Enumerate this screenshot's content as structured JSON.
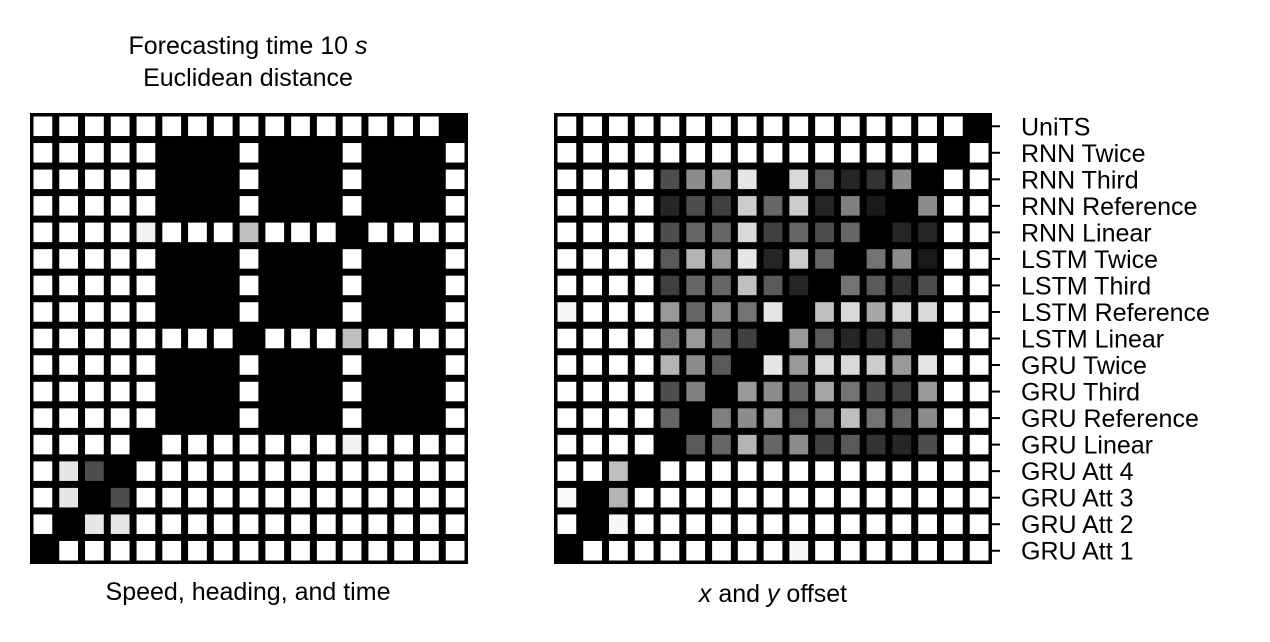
{
  "figure": {
    "title_line1_prefix": "Forecasting time 10 ",
    "title_line1_italic": "s",
    "title_line2": "Euclidean distance"
  },
  "chart_data": [
    {
      "type": "heatmap",
      "colormap": "gray (0 = black, 1 = white)",
      "xlabel": "Speed, heading, and time",
      "size": 17,
      "matrix": [
        [
          1,
          1,
          1,
          1,
          1,
          1,
          1,
          1,
          1,
          1,
          1,
          1,
          1,
          1,
          1,
          1,
          0
        ],
        [
          1,
          1,
          1,
          1,
          1,
          0,
          0,
          0,
          1,
          0,
          0,
          0,
          1,
          0,
          0,
          0,
          1
        ],
        [
          1,
          1,
          1,
          1,
          1,
          0,
          0,
          0,
          1,
          0,
          0,
          0,
          1,
          0,
          0,
          0,
          1
        ],
        [
          1,
          1,
          1,
          1,
          1,
          0,
          0,
          0,
          1,
          0,
          0,
          0,
          1,
          0,
          0,
          0,
          1
        ],
        [
          1,
          1,
          1,
          1,
          0.95,
          1,
          1,
          1,
          0.75,
          1,
          1,
          1,
          0,
          1,
          1,
          1,
          1
        ],
        [
          1,
          1,
          1,
          1,
          1,
          0,
          0,
          0,
          1,
          0,
          0,
          0,
          1,
          0,
          0,
          0,
          1
        ],
        [
          1,
          1,
          1,
          1,
          1,
          0,
          0,
          0,
          1,
          0,
          0,
          0,
          1,
          0,
          0,
          0,
          1
        ],
        [
          1,
          1,
          1,
          1,
          1,
          0,
          0,
          0,
          1,
          0,
          0,
          0,
          1,
          0,
          0,
          0,
          1
        ],
        [
          1,
          1,
          1,
          1,
          1,
          1,
          1,
          1,
          0,
          1,
          1,
          1,
          0.75,
          1,
          1,
          1,
          1
        ],
        [
          1,
          1,
          1,
          1,
          1,
          0,
          0,
          0,
          1,
          0,
          0,
          0,
          1,
          0,
          0,
          0,
          1
        ],
        [
          1,
          1,
          1,
          1,
          1,
          0,
          0,
          0,
          1,
          0,
          0,
          0,
          1,
          0,
          0,
          0,
          1
        ],
        [
          1,
          1,
          1,
          1,
          1,
          0,
          0,
          0,
          1,
          0,
          0,
          0,
          1,
          0,
          0,
          0,
          1
        ],
        [
          1,
          1,
          1,
          1,
          0,
          1,
          1,
          1,
          1,
          1,
          1,
          1,
          0.95,
          1,
          1,
          1,
          1
        ],
        [
          1,
          0.9,
          0.3,
          0,
          1,
          1,
          1,
          1,
          1,
          1,
          1,
          1,
          1,
          1,
          1,
          1,
          1
        ],
        [
          1,
          0.9,
          0,
          0.3,
          1,
          1,
          1,
          1,
          1,
          1,
          1,
          1,
          1,
          1,
          1,
          1,
          1
        ],
        [
          1,
          0,
          0.9,
          0.9,
          1,
          1,
          1,
          1,
          1,
          1,
          1,
          1,
          1,
          1,
          1,
          1,
          1
        ],
        [
          0,
          1,
          1,
          1,
          1,
          1,
          1,
          1,
          1,
          1,
          1,
          1,
          1,
          1,
          1,
          1,
          1
        ]
      ]
    },
    {
      "type": "heatmap",
      "colormap": "gray (0 = black, 1 = white)",
      "xlabel_italic_x": "x",
      "xlabel_and": " and ",
      "xlabel_italic_y": "y",
      "xlabel_suffix": " offset",
      "size": 17,
      "row_labels": [
        "UniTS",
        "RNN Twice",
        "RNN Third",
        "RNN Reference",
        "RNN Linear",
        "LSTM Twice",
        "LSTM Third",
        "LSTM Reference",
        "LSTM Linear",
        "GRU Twice",
        "GRU Third",
        "GRU Reference",
        "GRU Linear",
        "GRU Att 4",
        "GRU Att 3",
        "GRU Att 2",
        "GRU Att 1"
      ],
      "matrix": [
        [
          1,
          1,
          1,
          1,
          1,
          1,
          1,
          1,
          1,
          1,
          1,
          1,
          1,
          1,
          1,
          1,
          0
        ],
        [
          1,
          1,
          1,
          1,
          1,
          1,
          1,
          1,
          1,
          1,
          1,
          1,
          1,
          1,
          1,
          0,
          1
        ],
        [
          1,
          1,
          1,
          1,
          0.3,
          0.55,
          0.65,
          0.9,
          0,
          0.85,
          0.35,
          0.15,
          0.2,
          0.55,
          0,
          1,
          1
        ],
        [
          1,
          1,
          1,
          1,
          0.15,
          0.3,
          0.25,
          0.8,
          0.4,
          0.8,
          0.15,
          0.5,
          0.1,
          0,
          0.55,
          1,
          1
        ],
        [
          1,
          1,
          1,
          1,
          0.3,
          0.4,
          0.4,
          0.85,
          0.25,
          0.4,
          0.3,
          0.4,
          0,
          0.15,
          0.15,
          1,
          1
        ],
        [
          1,
          1,
          1,
          1,
          0.35,
          0.7,
          0.6,
          0.9,
          0.15,
          0.8,
          0.4,
          0,
          0.45,
          0.55,
          0.1,
          1,
          1
        ],
        [
          1,
          1,
          1,
          1,
          0.25,
          0.4,
          0.4,
          0.75,
          0.35,
          0.15,
          0,
          0.45,
          0.35,
          0.2,
          0.3,
          1,
          1
        ],
        [
          0.97,
          1,
          1,
          1,
          0.6,
          0.4,
          0.55,
          0.45,
          0.9,
          0,
          0.75,
          0.85,
          0.65,
          0.85,
          0.85,
          1,
          1
        ],
        [
          1,
          1,
          1,
          1,
          0.45,
          0.6,
          0.4,
          0.25,
          0,
          0.6,
          0.35,
          0.15,
          0.2,
          0.35,
          0,
          1,
          1
        ],
        [
          1,
          1,
          1,
          1,
          0.7,
          0.55,
          0.35,
          0,
          0.9,
          0.6,
          0.85,
          0.85,
          0.8,
          0.6,
          0.9,
          1,
          1
        ],
        [
          1,
          1,
          1,
          1,
          0.3,
          0.5,
          0,
          0.6,
          0.55,
          0.4,
          0.65,
          0.45,
          0.3,
          0.25,
          0.6,
          1,
          1
        ],
        [
          1,
          1,
          1,
          1,
          0.4,
          0,
          0.5,
          0.55,
          0.6,
          0.35,
          0.45,
          0.75,
          0.45,
          0.4,
          0.55,
          1,
          1
        ],
        [
          1,
          1,
          1,
          1,
          0,
          0.35,
          0.4,
          0.7,
          0.4,
          0.55,
          0.25,
          0.35,
          0.2,
          0.15,
          0.3,
          1,
          1
        ],
        [
          1,
          1,
          0.75,
          0,
          1,
          1,
          1,
          1,
          1,
          1,
          1,
          1,
          1,
          1,
          1,
          1,
          1
        ],
        [
          0.98,
          0,
          0.7,
          1,
          1,
          1,
          1,
          1,
          1,
          1,
          1,
          1,
          1,
          1,
          1,
          1,
          1
        ],
        [
          1,
          0,
          0.97,
          1,
          1,
          1,
          1,
          1,
          1,
          1,
          1,
          1,
          1,
          1,
          1,
          1,
          1
        ],
        [
          0,
          1,
          1,
          1,
          1,
          1,
          1,
          1,
          1,
          0.97,
          1,
          1,
          1,
          1,
          1,
          1,
          1
        ]
      ]
    }
  ]
}
